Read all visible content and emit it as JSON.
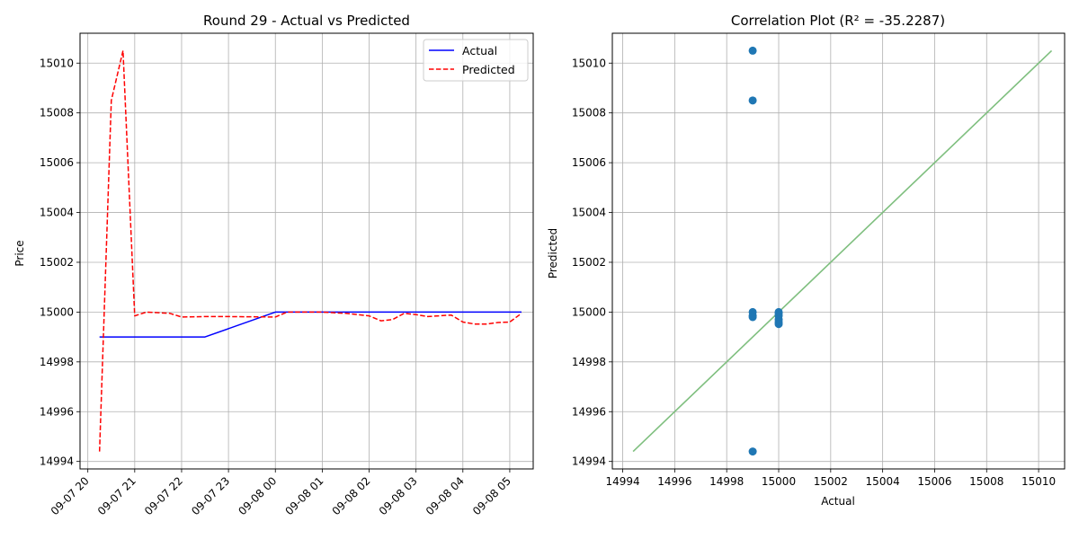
{
  "chart_data": [
    {
      "type": "line",
      "title": "Round 29 - Actual vs Predicted",
      "xlabel": "",
      "ylabel": "Price",
      "x_tick_labels": [
        "09-07 20",
        "09-07 21",
        "09-07 22",
        "09-07 23",
        "09-08 00",
        "09-08 01",
        "09-08 02",
        "09-08 03",
        "09-08 04",
        "09-08 05"
      ],
      "y_ticks": [
        14994,
        14996,
        14998,
        15000,
        15002,
        15004,
        15006,
        15008,
        15010
      ],
      "xlim": [
        "2024-09-07 19:50",
        "2024-09-08 05:30"
      ],
      "ylim": [
        14993.7,
        15011.2
      ],
      "grid": true,
      "legend": "top-right",
      "series": [
        {
          "name": "Actual",
          "color": "#0000ff",
          "style": "solid",
          "points": [
            {
              "t": "09-07 20:15",
              "y": 14999
            },
            {
              "t": "09-07 22:30",
              "y": 14999
            },
            {
              "t": "09-08 00:00",
              "y": 15000
            },
            {
              "t": "09-08 05:15",
              "y": 15000
            }
          ]
        },
        {
          "name": "Predicted",
          "color": "#ff0000",
          "style": "dashed",
          "points": [
            {
              "t": "09-07 20:15",
              "y": 14994.4
            },
            {
              "t": "09-07 20:30",
              "y": 15008.5
            },
            {
              "t": "09-07 20:45",
              "y": 15010.5
            },
            {
              "t": "09-07 21:00",
              "y": 14999.85
            },
            {
              "t": "09-07 21:15",
              "y": 15000.0
            },
            {
              "t": "09-07 21:45",
              "y": 14999.95
            },
            {
              "t": "09-07 22:00",
              "y": 14999.8
            },
            {
              "t": "09-07 22:30",
              "y": 14999.82
            },
            {
              "t": "09-07 23:00",
              "y": 14999.82
            },
            {
              "t": "09-08 00:00",
              "y": 14999.8
            },
            {
              "t": "09-08 00:15",
              "y": 15000.0
            },
            {
              "t": "09-08 01:00",
              "y": 15000.0
            },
            {
              "t": "09-08 01:30",
              "y": 14999.95
            },
            {
              "t": "09-08 02:00",
              "y": 14999.85
            },
            {
              "t": "09-08 02:15",
              "y": 14999.65
            },
            {
              "t": "09-08 02:30",
              "y": 14999.7
            },
            {
              "t": "09-08 02:45",
              "y": 14999.95
            },
            {
              "t": "09-08 03:00",
              "y": 14999.9
            },
            {
              "t": "09-08 03:15",
              "y": 14999.82
            },
            {
              "t": "09-08 03:45",
              "y": 14999.88
            },
            {
              "t": "09-08 04:00",
              "y": 14999.6
            },
            {
              "t": "09-08 04:15",
              "y": 14999.52
            },
            {
              "t": "09-08 04:30",
              "y": 14999.52
            },
            {
              "t": "09-08 04:45",
              "y": 14999.58
            },
            {
              "t": "09-08 05:00",
              "y": 14999.6
            },
            {
              "t": "09-08 05:15",
              "y": 14999.95
            }
          ]
        }
      ]
    },
    {
      "type": "scatter",
      "title": "Correlation Plot (R² = -35.2287)",
      "xlabel": "Actual",
      "ylabel": "Predicted",
      "x_ticks": [
        14994,
        14996,
        14998,
        15000,
        15002,
        15004,
        15006,
        15008,
        15010
      ],
      "y_ticks": [
        14994,
        14996,
        14998,
        15000,
        15002,
        15004,
        15006,
        15008,
        15010
      ],
      "xlim": [
        14993.6,
        15011.0
      ],
      "ylim": [
        14993.7,
        15011.2
      ],
      "grid": true,
      "point_color": "#1f77b4",
      "points": [
        {
          "x": 14999,
          "y": 15010.5
        },
        {
          "x": 14999,
          "y": 15008.5
        },
        {
          "x": 14999,
          "y": 15000.0
        },
        {
          "x": 14999,
          "y": 14999.85
        },
        {
          "x": 14999,
          "y": 14999.8
        },
        {
          "x": 14999,
          "y": 14994.4
        },
        {
          "x": 15000,
          "y": 15000.0
        },
        {
          "x": 15000,
          "y": 14999.95
        },
        {
          "x": 15000,
          "y": 14999.85
        },
        {
          "x": 15000,
          "y": 14999.7
        },
        {
          "x": 15000,
          "y": 14999.6
        },
        {
          "x": 15000,
          "y": 14999.52
        }
      ],
      "reference_line": {
        "from": 14994.4,
        "to": 15010.5,
        "color": "#7fbf7f"
      }
    }
  ]
}
